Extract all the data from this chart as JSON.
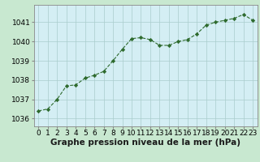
{
  "x": [
    0,
    1,
    2,
    3,
    4,
    5,
    6,
    7,
    8,
    9,
    10,
    11,
    12,
    13,
    14,
    15,
    16,
    17,
    18,
    19,
    20,
    21,
    22,
    23
  ],
  "y": [
    1036.4,
    1036.5,
    1037.0,
    1037.7,
    1037.75,
    1038.1,
    1038.25,
    1038.45,
    1039.0,
    1039.6,
    1040.15,
    1040.2,
    1040.1,
    1039.8,
    1039.8,
    1040.0,
    1040.1,
    1040.4,
    1040.85,
    1041.0,
    1041.1,
    1041.2,
    1041.4,
    1041.1
  ],
  "line_color": "#2d6a2d",
  "marker_color": "#2d6a2d",
  "bg_color": "#c8e8d0",
  "plot_bg_color": "#d4eef4",
  "grid_color": "#aacccc",
  "xlabel": "Graphe pression niveau de la mer (hPa)",
  "ylabel_ticks": [
    1036,
    1037,
    1038,
    1039,
    1040,
    1041
  ],
  "xlim": [
    -0.5,
    23.5
  ],
  "ylim": [
    1035.6,
    1041.9
  ],
  "xtick_labels": [
    "0",
    "1",
    "2",
    "3",
    "4",
    "5",
    "6",
    "7",
    "8",
    "9",
    "10",
    "11",
    "12",
    "13",
    "14",
    "15",
    "16",
    "17",
    "18",
    "19",
    "20",
    "21",
    "22",
    "23"
  ],
  "xlabel_fontsize": 7.5,
  "tick_fontsize": 6.5
}
